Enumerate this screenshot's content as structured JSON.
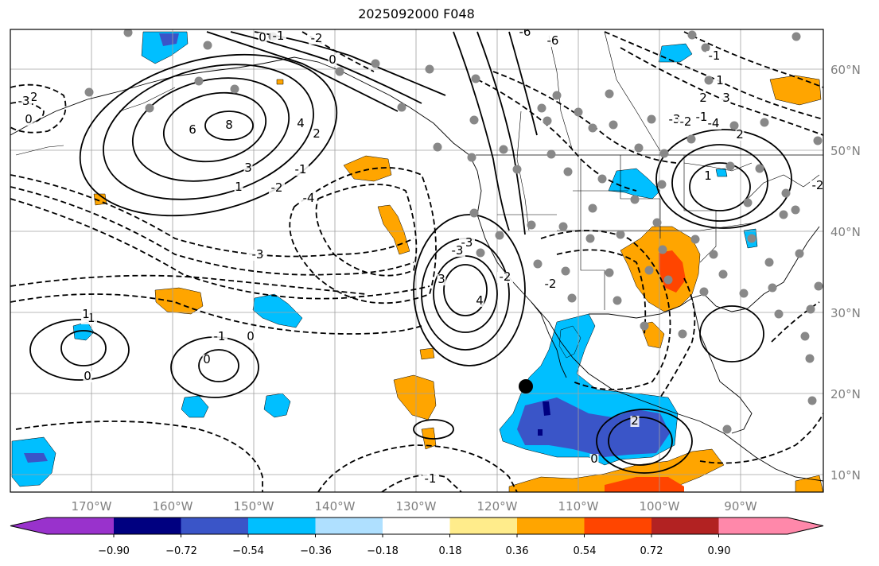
{
  "title": "2025092000 F048",
  "map": {
    "lat_labels": [
      "60°N",
      "50°N",
      "40°N",
      "30°N",
      "20°N",
      "10°N"
    ],
    "lon_labels": [
      "170°W",
      "160°W",
      "150°W",
      "140°W",
      "130°W",
      "120°W",
      "110°W",
      "100°W",
      "90°W"
    ],
    "contour_labels": [
      {
        "text": "0",
        "solid": true
      },
      {
        "text": "-1",
        "solid": false
      },
      {
        "text": "-2",
        "solid": false
      },
      {
        "text": "0",
        "solid": true
      },
      {
        "text": "-6",
        "solid": false
      },
      {
        "text": "6",
        "solid": true
      },
      {
        "text": "8",
        "solid": true
      },
      {
        "text": "4",
        "solid": true
      },
      {
        "text": "2",
        "solid": true
      },
      {
        "text": "3",
        "solid": true
      },
      {
        "text": "1",
        "solid": true
      },
      {
        "text": "-2",
        "solid": false
      },
      {
        "text": "-1",
        "solid": false
      },
      {
        "text": "-2",
        "solid": false
      },
      {
        "text": "0",
        "solid": true
      },
      {
        "text": "-3",
        "solid": false
      },
      {
        "text": "-4",
        "solid": false
      },
      {
        "text": "3",
        "solid": true
      },
      {
        "text": "4",
        "solid": true
      },
      {
        "text": "-3",
        "solid": false
      },
      {
        "text": "-2",
        "solid": false
      },
      {
        "text": "-1",
        "solid": false
      },
      {
        "text": "1",
        "solid": true
      },
      {
        "text": "2",
        "solid": true
      },
      {
        "text": "3",
        "solid": true
      },
      {
        "text": "1",
        "solid": true
      },
      {
        "text": "2",
        "solid": true
      },
      {
        "text": "0",
        "solid": true
      },
      {
        "text": "-1",
        "solid": false
      },
      {
        "text": "0",
        "solid": true
      },
      {
        "text": "-1",
        "solid": false
      },
      {
        "text": "0",
        "solid": true
      },
      {
        "text": "2",
        "solid": true
      },
      {
        "text": "0",
        "solid": true
      },
      {
        "text": "1",
        "solid": true
      },
      {
        "text": "-1",
        "solid": false
      },
      {
        "text": "-6",
        "solid": false
      },
      {
        "text": "-4",
        "solid": false
      },
      {
        "text": "-3",
        "solid": false
      },
      {
        "text": "-2",
        "solid": false
      },
      {
        "text": "-1",
        "solid": false
      },
      {
        "text": "-3",
        "solid": false
      },
      {
        "text": "-2",
        "solid": false
      },
      {
        "text": "-2",
        "solid": false
      },
      {
        "text": "-3",
        "solid": false
      }
    ]
  },
  "colorbar": {
    "colors": [
      "#9932cc",
      "#000080",
      "#3a55c8",
      "#00bfff",
      "#afe0ff",
      "#ffffff",
      "#ffec8b",
      "#ffa500",
      "#ff4500",
      "#b22222",
      "#ff88aa"
    ],
    "labels": [
      "−0.90",
      "−0.72",
      "−0.54",
      "−0.36",
      "−0.18",
      "0.18",
      "0.36",
      "0.54",
      "0.72",
      "0.90"
    ]
  }
}
